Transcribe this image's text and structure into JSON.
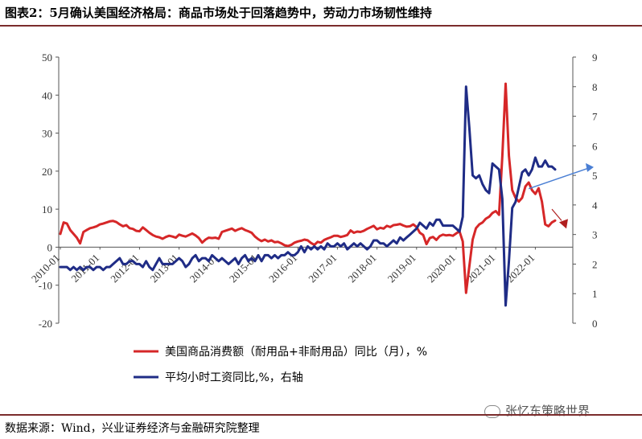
{
  "title": "图表2：5月确认美国经济格局：商品市场处于回落趋势中，劳动力市场韧性维持",
  "source": "数据来源：Wind，兴业证券经济与金融研究院整理",
  "watermark": "张忆东策略世界",
  "chart_data": {
    "type": "line",
    "x_tick_labels": [
      "2010-01",
      "2011-01",
      "2012-01",
      "2013-01",
      "2014-01",
      "2015-01",
      "2016-01",
      "2017-01",
      "2018-01",
      "2019-01",
      "2020-01",
      "2021-01",
      "2022-01"
    ],
    "y_left": {
      "min": -20,
      "max": 50,
      "ticks": [
        -20,
        -10,
        0,
        10,
        20,
        30,
        40,
        50
      ]
    },
    "y_right": {
      "min": 0,
      "max": 9,
      "ticks": [
        0,
        1,
        2,
        3,
        4,
        5,
        6,
        7,
        8,
        9
      ]
    },
    "series": [
      {
        "name": "美国商品消费额（耐用品+非耐用品）同比（月），%",
        "axis": "left",
        "color": "#d62728",
        "start": "2010-01",
        "frequency": "monthly",
        "values": [
          3.5,
          6.5,
          6.2,
          4.5,
          3.5,
          2.5,
          1.0,
          4.0,
          4.5,
          5.0,
          5.2,
          5.5,
          6.0,
          6.2,
          6.5,
          6.8,
          6.9,
          6.6,
          6.0,
          5.5,
          5.8,
          5.0,
          4.8,
          4.3,
          4.2,
          5.2,
          4.5,
          3.8,
          3.2,
          2.8,
          2.6,
          2.2,
          2.7,
          3.0,
          2.8,
          2.5,
          3.3,
          3.0,
          2.8,
          3.2,
          3.6,
          3.1,
          2.4,
          1.2,
          2.0,
          2.5,
          2.4,
          2.5,
          2.2,
          4.0,
          4.3,
          4.6,
          4.9,
          4.3,
          4.7,
          5.0,
          4.5,
          4.2,
          3.8,
          2.8,
          2.1,
          1.6,
          2.0,
          1.5,
          1.8,
          1.3,
          1.4,
          1.0,
          0.5,
          0.3,
          0.6,
          1.2,
          1.5,
          1.7,
          2.0,
          1.8,
          1.1,
          0.6,
          1.4,
          1.2,
          1.9,
          2.3,
          2.6,
          3.0,
          3.0,
          2.7,
          2.9,
          3.2,
          4.4,
          3.8,
          4.1,
          4.0,
          4.3,
          4.8,
          5.2,
          5.6,
          4.7,
          5.1,
          4.9,
          5.6,
          5.3,
          5.8,
          5.9,
          6.1,
          5.7,
          5.4,
          5.5,
          6.0,
          5.3,
          3.8,
          3.2,
          0.8,
          2.4,
          2.7,
          1.9,
          2.9,
          3.3,
          3.1,
          3.2,
          3.0,
          3.6,
          4.2,
          1.5,
          -12.0,
          -5.0,
          2.0,
          5.0,
          6.0,
          6.5,
          7.5,
          8.0,
          9.0,
          9.5,
          8.5,
          24.0,
          43.0,
          24.0,
          15.0,
          13.0,
          12.0,
          13.0,
          16.0,
          17.0,
          15.0,
          14.0,
          15.5,
          12.0,
          6.0,
          5.5,
          6.5,
          7.0
        ]
      },
      {
        "name": "平均小时工资同比,%，右轴",
        "axis": "right",
        "color": "#1f2c86",
        "start": "2010-01",
        "frequency": "monthly",
        "values": [
          1.9,
          1.9,
          1.9,
          1.8,
          1.9,
          1.8,
          1.9,
          1.8,
          1.9,
          1.9,
          1.8,
          1.9,
          1.9,
          1.8,
          1.9,
          1.9,
          2.0,
          2.1,
          2.2,
          2.0,
          2.0,
          2.1,
          2.1,
          2.0,
          2.0,
          1.9,
          2.1,
          1.9,
          1.8,
          2.0,
          2.2,
          2.0,
          2.0,
          2.0,
          2.0,
          2.1,
          2.2,
          2.1,
          1.9,
          2.0,
          2.2,
          2.3,
          2.1,
          2.2,
          2.2,
          2.1,
          2.3,
          2.2,
          2.1,
          2.2,
          2.1,
          2.0,
          2.1,
          2.2,
          2.0,
          2.2,
          2.3,
          2.1,
          2.2,
          2.1,
          2.3,
          2.1,
          2.3,
          2.3,
          2.2,
          2.3,
          2.2,
          2.3,
          2.3,
          2.4,
          2.3,
          2.3,
          2.4,
          2.6,
          2.4,
          2.6,
          2.5,
          2.6,
          2.5,
          2.6,
          2.5,
          2.7,
          2.6,
          2.6,
          2.7,
          2.6,
          2.7,
          2.5,
          2.6,
          2.7,
          2.6,
          2.7,
          2.6,
          2.5,
          2.6,
          2.8,
          2.8,
          2.7,
          2.7,
          2.6,
          2.7,
          2.8,
          2.7,
          2.9,
          2.8,
          2.9,
          3.0,
          3.1,
          3.2,
          3.4,
          3.3,
          3.2,
          3.4,
          3.3,
          3.5,
          3.5,
          3.3,
          3.3,
          3.3,
          3.3,
          3.2,
          3.1,
          3.6,
          8.0,
          6.6,
          5.0,
          4.9,
          5.0,
          4.7,
          4.5,
          4.4,
          5.4,
          5.3,
          5.2,
          4.2,
          0.6,
          2.1,
          3.9,
          4.1,
          4.6,
          5.1,
          5.2,
          5.0,
          5.2,
          5.6,
          5.3,
          5.3,
          5.5,
          5.3,
          5.3,
          5.2
        ]
      }
    ],
    "annotations": [
      {
        "type": "arrow",
        "series": "平均小时工资同比,%，右轴",
        "color": "#4a7fd4"
      },
      {
        "type": "marker",
        "series": "美国商品消费额（耐用品+非耐用品）同比（月），%",
        "color": "#b01e1e"
      }
    ],
    "legend_position": "bottom"
  }
}
